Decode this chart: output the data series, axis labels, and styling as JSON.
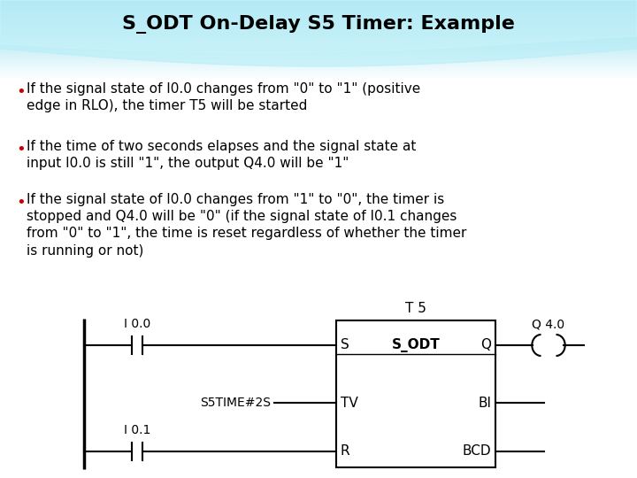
{
  "title": "S_ODT On-Delay S5 Timer: Example",
  "title_fontsize": 16,
  "title_fontweight": "bold",
  "title_color": "#000000",
  "bullet_color": "#CC0000",
  "text_color": "#000000",
  "bullet1": "If the signal state of I0.0 changes from \"0\" to \"1\" (positive\nedge in RLO), the timer T5 will be started",
  "bullet2": "If the time of two seconds elapses and the signal state at\ninput I0.0 is still \"1\", the output Q4.0 will be \"1\"",
  "bullet3": "If the signal state of I0.0 changes from \"1\" to \"0\", the timer is\nstopped and Q4.0 will be \"0\" (if the signal state of I0.1 changes\nfrom \"0\" to \"1\", the time is reset regardless of whether the timer\nis running or not)",
  "fig_width": 7.2,
  "fig_height": 5.4,
  "fig_dpi": 100
}
